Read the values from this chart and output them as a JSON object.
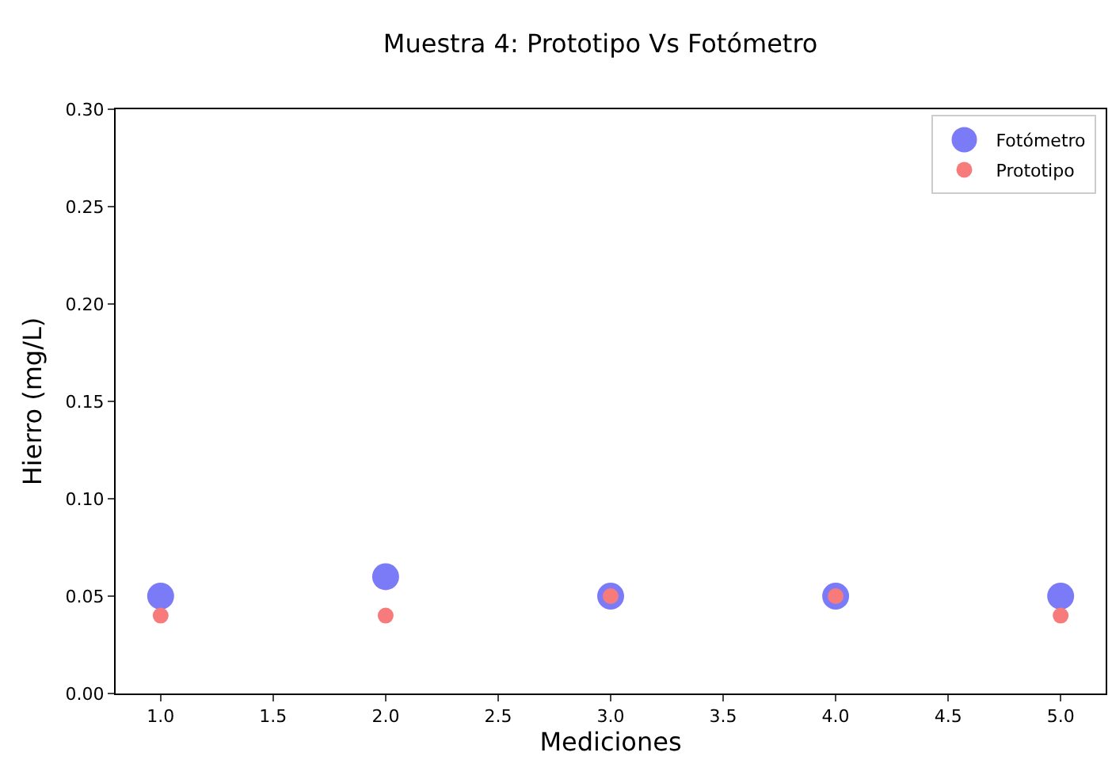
{
  "chart_data": {
    "type": "scatter",
    "title": "Muestra 4: Prototipo Vs Fotómetro",
    "xlabel": "Mediciones",
    "ylabel": "Hierro (mg/L)",
    "x": [
      1,
      2,
      3,
      4,
      5
    ],
    "series": [
      {
        "name": "Fotómetro",
        "color": "#7b7bf7",
        "values": [
          0.05,
          0.06,
          0.05,
          0.05,
          0.05
        ]
      },
      {
        "name": "Prototipo",
        "color": "#f77b7b",
        "values": [
          0.04,
          0.04,
          0.05,
          0.05,
          0.04
        ]
      }
    ],
    "xlim": [
      0.8,
      5.2
    ],
    "xticks": [
      {
        "value": 1,
        "label": "1.0"
      },
      {
        "value": 1.5,
        "label": "1.5"
      },
      {
        "value": 2,
        "label": "2.0"
      },
      {
        "value": 2.5,
        "label": "2.5"
      },
      {
        "value": 3,
        "label": "3.0"
      },
      {
        "value": 3.5,
        "label": "3.5"
      },
      {
        "value": 4,
        "label": "4.0"
      },
      {
        "value": 4.5,
        "label": "4.5"
      },
      {
        "value": 5,
        "label": "5.0"
      }
    ],
    "ylim": [
      0,
      0.3
    ],
    "yticks": [
      {
        "value": 0,
        "label": "0.00"
      },
      {
        "value": 0.05,
        "label": "0.05"
      },
      {
        "value": 0.1,
        "label": "0.10"
      },
      {
        "value": 0.15,
        "label": "0.15"
      },
      {
        "value": 0.2,
        "label": "0.20"
      },
      {
        "value": 0.25,
        "label": "0.25"
      },
      {
        "value": 0.3,
        "label": "0.30"
      }
    ],
    "grid": false,
    "legend": "top right",
    "marker": "circle"
  }
}
